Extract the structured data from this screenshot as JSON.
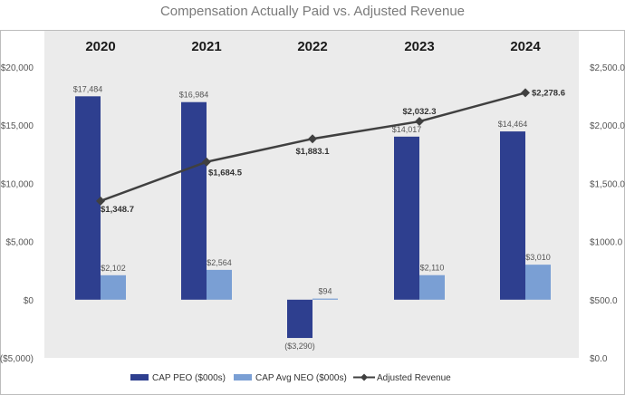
{
  "chart_data": {
    "type": "bar",
    "title": "Compensation Actually Paid vs. Adjusted Revenue",
    "categories": [
      "2020",
      "2021",
      "2022",
      "2023",
      "2024"
    ],
    "series": [
      {
        "name": "CAP PEO ($000s)",
        "kind": "bar",
        "axis": "left",
        "color": "#2e3f8f",
        "values": [
          17484,
          16984,
          -3290,
          14017,
          14464
        ],
        "labels": [
          "$17,484",
          "$16,984",
          "($3,290)",
          "$14,017",
          "$14,464"
        ]
      },
      {
        "name": "CAP Avg NEO ($000s)",
        "kind": "bar",
        "axis": "left",
        "color": "#7a9fd4",
        "values": [
          2102,
          2564,
          94,
          2110,
          3010
        ],
        "labels": [
          "$2,102",
          "$2,564",
          "$94",
          "$2,110",
          "$3,010"
        ]
      },
      {
        "name": "Adjusted Revenue",
        "kind": "line",
        "axis": "right",
        "color": "#404040",
        "values": [
          1348.7,
          1684.5,
          1883.1,
          2032.3,
          2278.6
        ],
        "labels": [
          "$1,348.7",
          "$1,684.5",
          "$1,883.1",
          "$2,032.3",
          "$2,278.6"
        ]
      }
    ],
    "y_left": {
      "min": -5000,
      "max": 20000,
      "ticks": [
        20000,
        15000,
        10000,
        5000,
        0,
        -5000
      ],
      "tick_labels": [
        "$20,000",
        "$15,000",
        "$10,000",
        "$5,000",
        "$0",
        "($5,000)"
      ]
    },
    "y_right": {
      "min": 0,
      "max": 2500,
      "ticks": [
        2500,
        2000,
        1500,
        1000,
        500,
        0
      ],
      "tick_labels": [
        "$2,500.0",
        "$2,000.0",
        "$1,500.0",
        "$1000.0",
        "$500.0",
        "$0.0"
      ]
    },
    "legend_position": "bottom",
    "background": "#ebebeb"
  }
}
